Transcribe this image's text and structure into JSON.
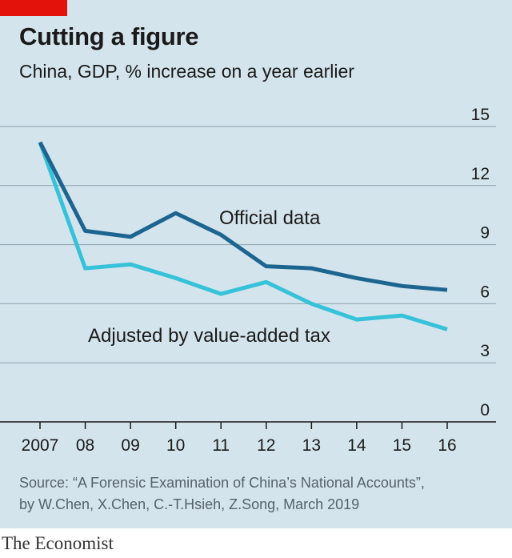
{
  "header": {
    "title": "Cutting a figure",
    "subtitle": "China, GDP, % increase on a year earlier"
  },
  "footer": {
    "source_line1": "Source: “A Forensic Examination of China’s National Accounts”,",
    "source_line2": "by W.Chen, X.Chen, C.-T.Hsieh, Z.Song, March 2019",
    "brand": "The Economist"
  },
  "colors": {
    "background": "#d4e4ec",
    "official": "#1d6591",
    "adjusted": "#36c2d8",
    "brand_red": "#e3120b"
  },
  "chart_data": {
    "type": "line",
    "title": "Cutting a figure",
    "subtitle": "China, GDP, % increase on a year earlier",
    "x": [
      2007,
      2008,
      2009,
      2010,
      2011,
      2012,
      2013,
      2014,
      2015,
      2016
    ],
    "x_tick_labels": [
      "2007",
      "08",
      "09",
      "10",
      "11",
      "12",
      "13",
      "14",
      "15",
      "16"
    ],
    "ylim": [
      0,
      15
    ],
    "y_ticks": [
      0,
      3,
      6,
      9,
      12,
      15
    ],
    "y_axis_side": "right",
    "grid": true,
    "series": [
      {
        "name": "Official data",
        "color": "#1d6591",
        "values": [
          14.2,
          9.7,
          9.4,
          10.6,
          9.5,
          7.9,
          7.8,
          7.3,
          6.9,
          6.7
        ]
      },
      {
        "name": "Adjusted by value-added tax",
        "color": "#36c2d8",
        "values": [
          14.2,
          7.8,
          8.0,
          7.3,
          6.5,
          7.1,
          6.0,
          5.2,
          5.4,
          4.7
        ]
      }
    ]
  }
}
